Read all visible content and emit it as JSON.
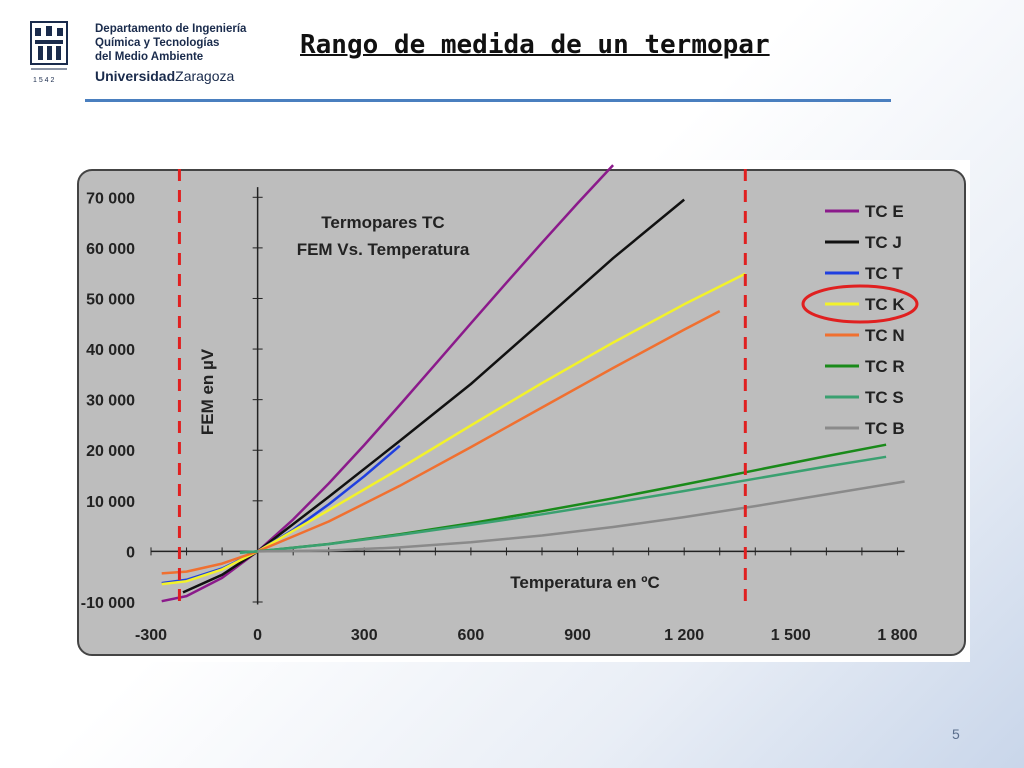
{
  "logo": {
    "dept_line1": "Departamento de Ingeniería",
    "dept_line2": "Química y Tecnologías",
    "dept_line3": "del Medio Ambiente",
    "univ_bold": "Universidad",
    "univ_rest": "Zaragoza",
    "year": "1 5 4 2"
  },
  "slide": {
    "title": "Rango de medida de un termopar",
    "page_number": "5"
  },
  "colors": {
    "plot_bg": "#bdbdbd",
    "marker": "#e02020",
    "title_rule": "#4a7fbf"
  },
  "chart_data": {
    "type": "line",
    "title_line1": "Termopares TC",
    "title_line2": "FEM Vs. Temperatura",
    "xlabel": "Temperatura en ºC",
    "ylabel": "FEM en µV",
    "xlim": [
      -300,
      1900
    ],
    "ylim": [
      -10000,
      75000
    ],
    "x_ticks": [
      -300,
      0,
      300,
      600,
      900,
      1200,
      1500,
      1800
    ],
    "x_tick_labels": [
      "-300",
      "0",
      "300",
      "600",
      "900",
      "1 200",
      "1 500",
      "1 800"
    ],
    "y_ticks": [
      -10000,
      0,
      10000,
      20000,
      30000,
      40000,
      50000,
      60000,
      70000
    ],
    "y_tick_labels": [
      "-10 000",
      "0",
      "10 000",
      "20 000",
      "30 000",
      "40 000",
      "50 000",
      "60 000",
      "70 000"
    ],
    "range_markers_x": [
      -220,
      1372
    ],
    "highlighted_series": "TC K",
    "legend_position": "top-right",
    "series": [
      {
        "name": "TC E",
        "color": "#8b1a8b",
        "x": [
          -270,
          -200,
          -100,
          0,
          100,
          200,
          300,
          400,
          500,
          600,
          700,
          800,
          900,
          1000
        ],
        "values": [
          -9835,
          -8825,
          -5237,
          0,
          6319,
          13421,
          21036,
          28946,
          36999,
          45093,
          53112,
          61017,
          68787,
          76373
        ]
      },
      {
        "name": "TC J",
        "color": "#111111",
        "x": [
          -210,
          -100,
          0,
          200,
          400,
          600,
          800,
          1000,
          1200
        ],
        "values": [
          -8095,
          -4633,
          0,
          10777,
          21848,
          33102,
          45494,
          57953,
          69553
        ]
      },
      {
        "name": "TC T",
        "color": "#1f3fe0",
        "x": [
          -270,
          -200,
          -100,
          0,
          100,
          200,
          300,
          400
        ],
        "values": [
          -6258,
          -5603,
          -3379,
          0,
          4279,
          9288,
          14862,
          20872
        ]
      },
      {
        "name": "TC K",
        "color": "#f2f22a",
        "x": [
          -270,
          -200,
          -100,
          0,
          200,
          400,
          600,
          800,
          1000,
          1200,
          1372
        ],
        "values": [
          -6458,
          -5891,
          -3554,
          0,
          8138,
          16397,
          24905,
          33275,
          41276,
          48838,
          54886
        ]
      },
      {
        "name": "TC N",
        "color": "#f07030",
        "x": [
          -270,
          -200,
          -100,
          0,
          200,
          400,
          600,
          800,
          1000,
          1200,
          1300
        ],
        "values": [
          -4345,
          -3990,
          -2407,
          0,
          5913,
          12974,
          20613,
          28455,
          36256,
          43846,
          47513
        ]
      },
      {
        "name": "TC R",
        "color": "#1a8a1a",
        "x": [
          -50,
          0,
          200,
          400,
          600,
          800,
          1000,
          1200,
          1400,
          1600,
          1768
        ],
        "values": [
          -226,
          0,
          1469,
          3408,
          5583,
          7950,
          10506,
          13228,
          16040,
          18849,
          21101
        ]
      },
      {
        "name": "TC S",
        "color": "#3aa070",
        "x": [
          -50,
          0,
          200,
          400,
          600,
          800,
          1000,
          1200,
          1400,
          1600,
          1768
        ],
        "values": [
          -236,
          0,
          1441,
          3259,
          5239,
          7345,
          9587,
          11951,
          14373,
          16777,
          18693
        ]
      },
      {
        "name": "TC B",
        "color": "#8a8a8a",
        "x": [
          0,
          200,
          400,
          600,
          800,
          1000,
          1200,
          1400,
          1600,
          1820
        ],
        "values": [
          0,
          178,
          787,
          1792,
          3154,
          4834,
          6786,
          8956,
          11263,
          13820
        ]
      }
    ]
  }
}
